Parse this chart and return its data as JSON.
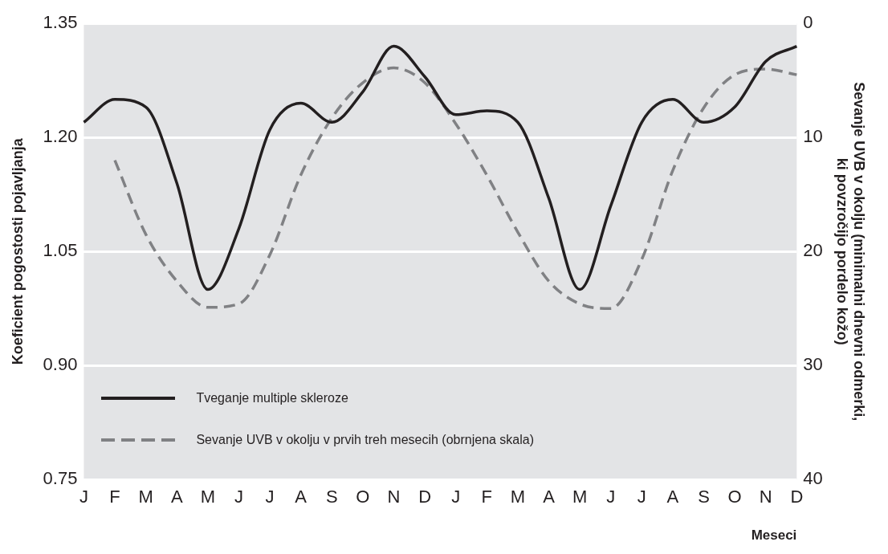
{
  "chart_data": {
    "type": "line",
    "xlabel": "Meseci",
    "ylabel": "Koeficient pogostosti pojavljanja",
    "y2label": "Sevanje UVB v okolju (minimalni dnevni odmerki, ki povzročijo pordelo kožo)",
    "categories": [
      "J",
      "F",
      "M",
      "A",
      "M",
      "J",
      "J",
      "A",
      "S",
      "O",
      "N",
      "D",
      "J",
      "F",
      "M",
      "A",
      "M",
      "J",
      "J",
      "A",
      "S",
      "O",
      "N",
      "D"
    ],
    "series": [
      {
        "name": "Tveganje multiple skleroze",
        "color": "#231f20",
        "line_style": "solid",
        "values": [
          1.22,
          1.25,
          1.24,
          1.14,
          1.0,
          1.08,
          1.21,
          1.245,
          1.22,
          1.26,
          1.32,
          1.28,
          1.23,
          1.235,
          1.22,
          1.12,
          1.0,
          1.11,
          1.22,
          1.25,
          1.22,
          1.24,
          1.3,
          1.32
        ]
      },
      {
        "name": "Sevanje UVB v okolju v prvih treh mesecih (obrnjena skala)",
        "color": "#808184",
        "line_style": "dashed",
        "axis": "y2",
        "values": [
          null,
          12,
          18.5,
          22.6,
          24.9,
          24.6,
          20.3,
          13.3,
          8.3,
          5.2,
          3.9,
          5.2,
          8.8,
          13.3,
          18.3,
          22.6,
          24.6,
          25,
          20.7,
          12.9,
          7.4,
          4.5,
          4.0,
          4.5
        ]
      }
    ],
    "ylim": [
      0.75,
      1.35
    ],
    "yticks": [
      {
        "value": 0.75,
        "label": "0.75"
      },
      {
        "value": 0.9,
        "label": "0.90"
      },
      {
        "value": 1.05,
        "label": "1.05"
      },
      {
        "value": 1.2,
        "label": "1.20"
      },
      {
        "value": 1.35,
        "label": "1.35"
      }
    ],
    "y2lim": [
      40,
      0
    ],
    "y2ticks": [
      0,
      10,
      20,
      30,
      40
    ],
    "grid": "y",
    "legend": "bottom left",
    "marker": "none"
  }
}
